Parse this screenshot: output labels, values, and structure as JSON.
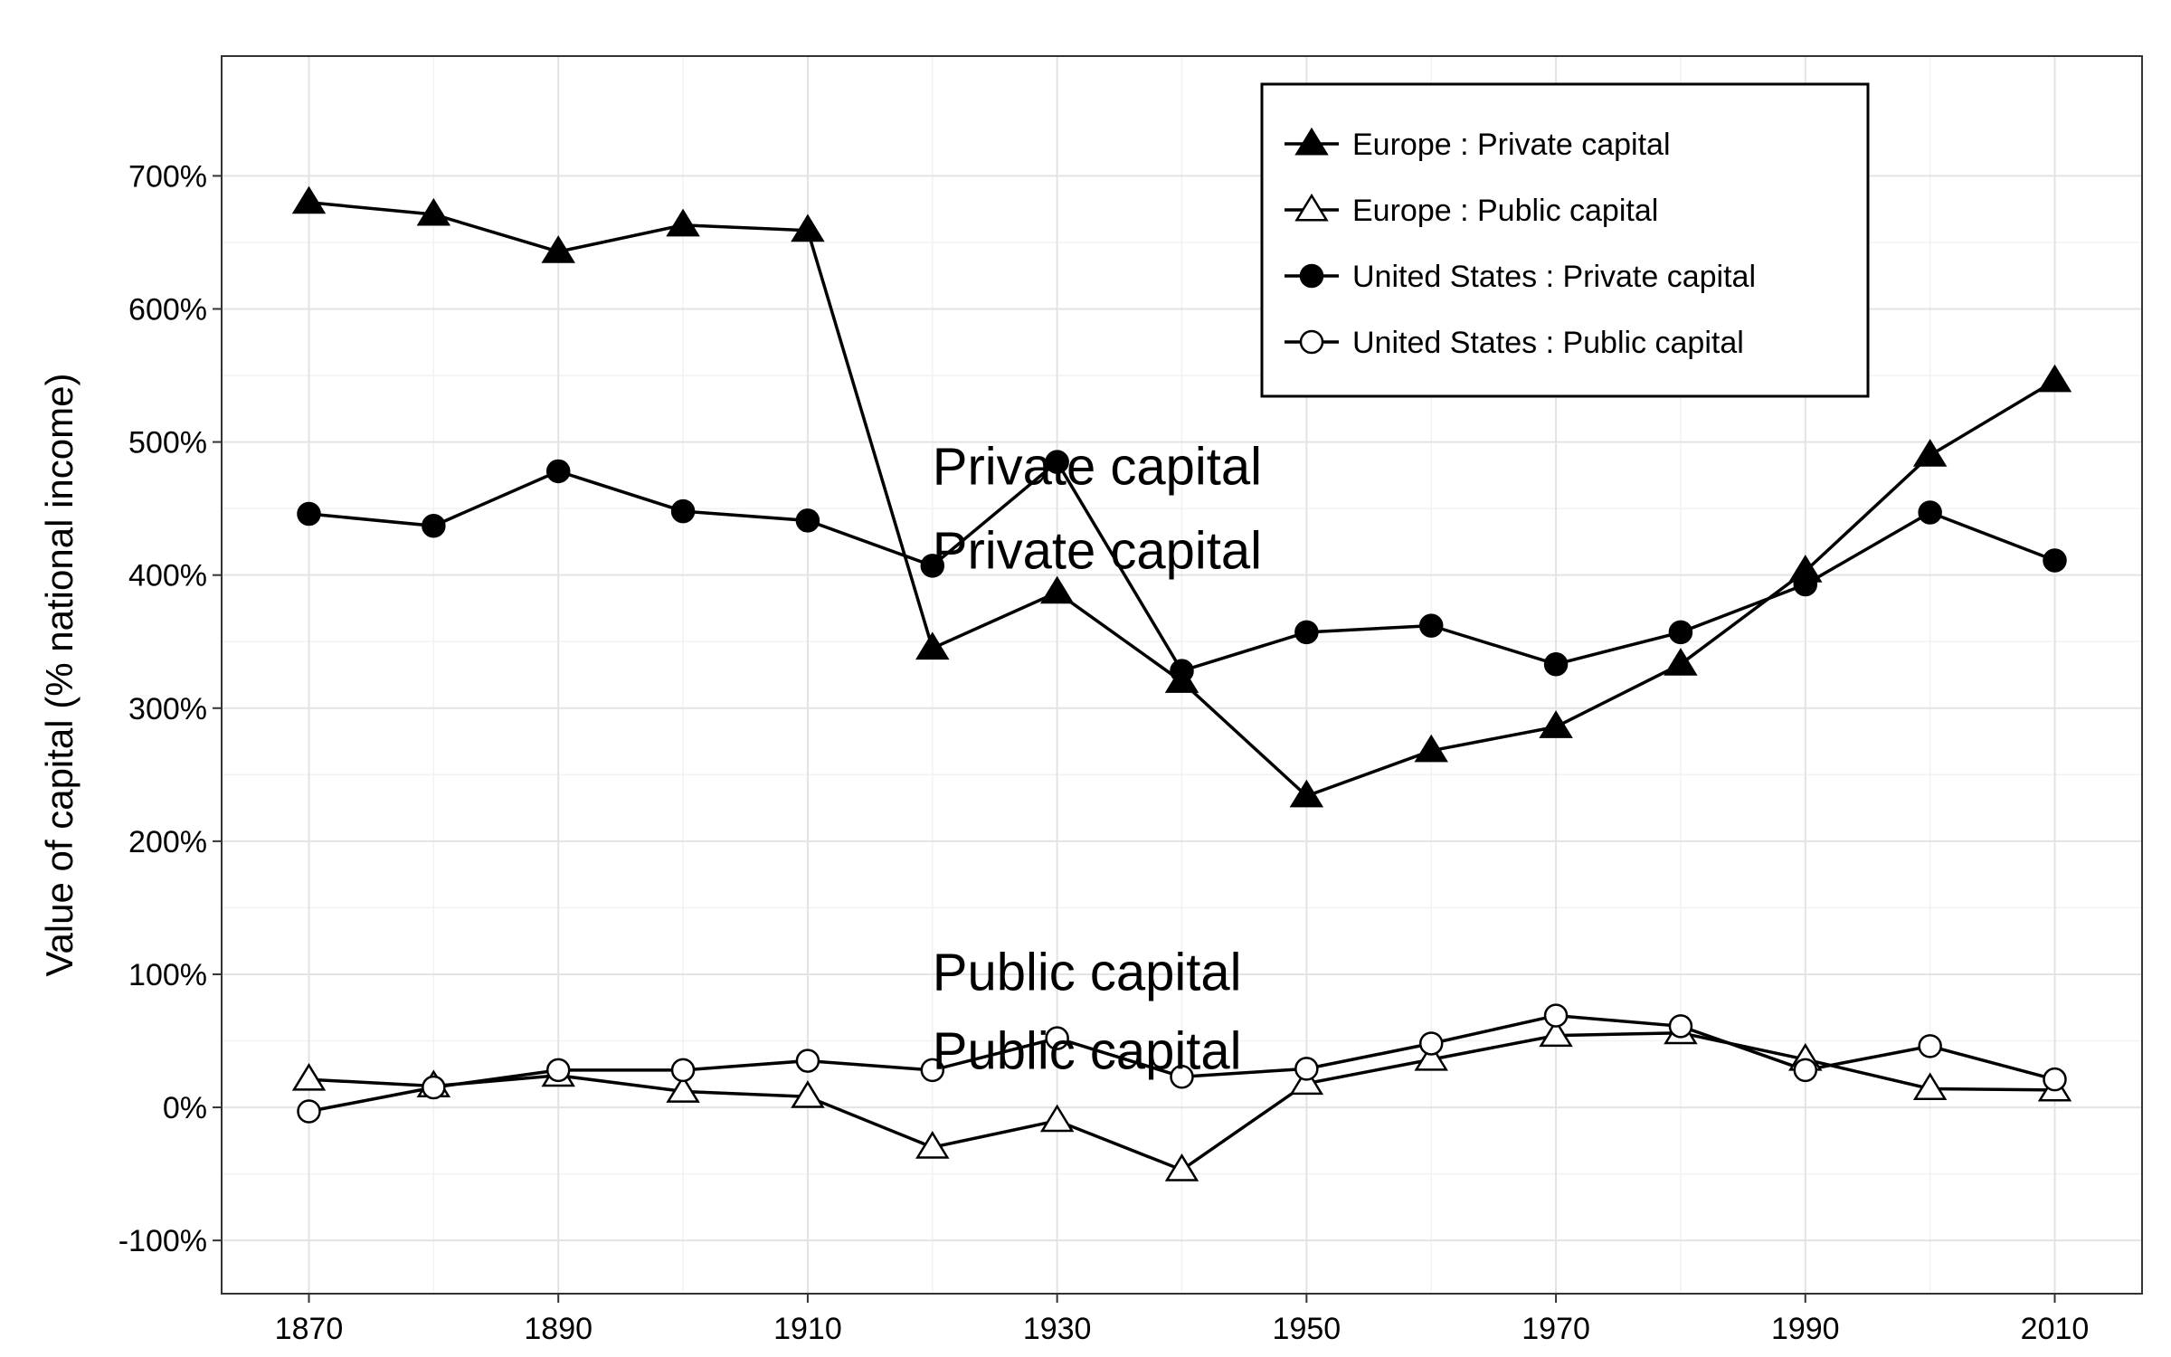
{
  "chart_data": {
    "type": "line",
    "ylabel": "Value of capital (% national income)",
    "xlabel": "",
    "x": [
      1870,
      1880,
      1890,
      1900,
      1910,
      1920,
      1930,
      1940,
      1950,
      1960,
      1970,
      1980,
      1990,
      2000,
      2010
    ],
    "xlim": [
      1863,
      2017
    ],
    "ylim": [
      -140,
      790
    ],
    "x_ticks": [
      1870,
      1890,
      1910,
      1930,
      1950,
      1970,
      1990,
      2010
    ],
    "x_tick_labels": [
      "1870",
      "1890",
      "1910",
      "1930",
      "1950",
      "1970",
      "1990",
      "2010"
    ],
    "y_ticks": [
      -100,
      0,
      100,
      200,
      300,
      400,
      500,
      600,
      700
    ],
    "y_tick_labels": [
      "-100%",
      "0%",
      "100%",
      "200%",
      "300%",
      "400%",
      "500%",
      "600%",
      "700%"
    ],
    "grid": true,
    "legend_position": "top-right",
    "series": [
      {
        "name": "Europe : Private capital",
        "marker": "filled-triangle",
        "color": "#000000",
        "values": [
          680,
          671,
          643,
          663,
          659,
          345,
          387,
          320,
          234,
          268,
          286,
          333,
          403,
          490,
          546
        ]
      },
      {
        "name": "Europe : Public capital",
        "marker": "open-triangle",
        "color": "#000000",
        "values": [
          21,
          16,
          24,
          12,
          8,
          -30,
          -10,
          -47,
          18,
          36,
          54,
          56,
          36,
          14,
          13
        ]
      },
      {
        "name": "United States : Private capital",
        "marker": "filled-circle",
        "color": "#000000",
        "values": [
          446,
          437,
          478,
          448,
          441,
          407,
          485,
          328,
          357,
          362,
          333,
          357,
          393,
          447,
          411
        ]
      },
      {
        "name": "United States : Public capital",
        "marker": "open-circle",
        "color": "#000000",
        "values": [
          -3,
          15,
          28,
          28,
          35,
          28,
          52,
          23,
          29,
          48,
          69,
          61,
          28,
          46,
          21
        ]
      }
    ],
    "annotations": [
      {
        "text": "Private capital",
        "x": 1920,
        "y": 468
      },
      {
        "text": "Private capital",
        "x": 1920,
        "y": 405
      },
      {
        "text": "Public capital",
        "x": 1920,
        "y": 88
      },
      {
        "text": "Public capital",
        "x": 1920,
        "y": 29
      }
    ]
  }
}
